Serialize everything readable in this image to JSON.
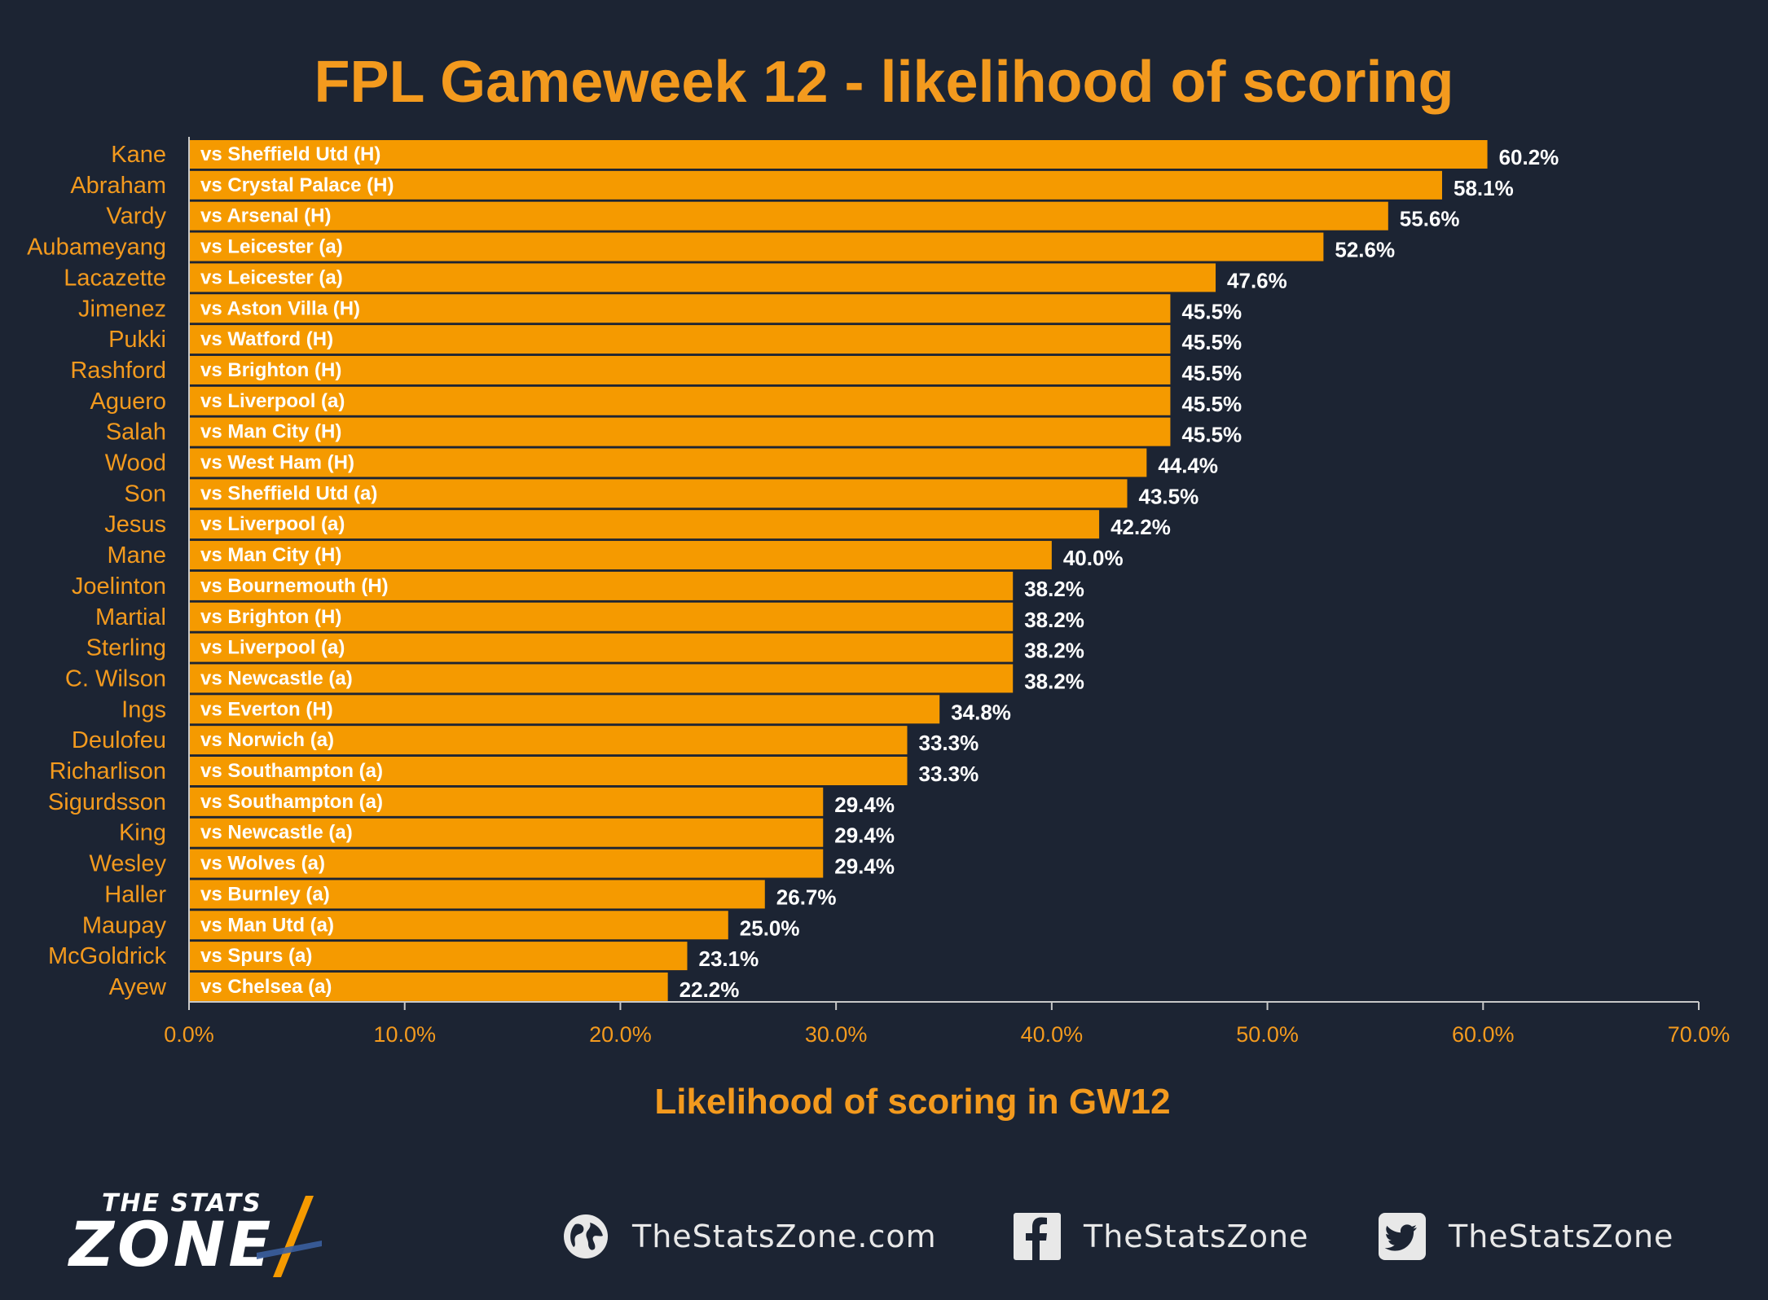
{
  "chart_data": {
    "type": "bar",
    "orientation": "horizontal",
    "title": "FPL Gameweek 12 - likelihood of scoring",
    "xlabel": "Likelihood of scoring in GW12",
    "xlim": [
      0,
      70
    ],
    "x_ticks": [
      "0.0%",
      "10.0%",
      "20.0%",
      "30.0%",
      "40.0%",
      "50.0%",
      "60.0%",
      "70.0%"
    ],
    "grid": false,
    "colors": {
      "bar": "#f59a00",
      "text": "#f39a1e",
      "background": "#1c2433",
      "axis": "#c8c8c8"
    },
    "categories": [
      "Kane",
      "Abraham",
      "Vardy",
      "Aubameyang",
      "Lacazette",
      "Jimenez",
      "Pukki",
      "Rashford",
      "Aguero",
      "Salah",
      "Wood",
      "Son",
      "Jesus",
      "Mane",
      "Joelinton",
      "Martial",
      "Sterling",
      "C. Wilson",
      "Ings",
      "Deulofeu",
      "Richarlison",
      "Sigurdsson",
      "King",
      "Wesley",
      "Haller",
      "Maupay",
      "McGoldrick",
      "Ayew"
    ],
    "fixtures": [
      "vs Sheffield Utd (H)",
      "vs Crystal Palace (H)",
      "vs Arsenal (H)",
      "vs Leicester (a)",
      "vs Leicester (a)",
      "vs Aston Villa (H)",
      "vs Watford (H)",
      "vs Brighton (H)",
      "vs Liverpool (a)",
      "vs Man City (H)",
      "vs West Ham (H)",
      "vs Sheffield Utd (a)",
      "vs Liverpool (a)",
      "vs Man City (H)",
      "vs Bournemouth (H)",
      "vs Brighton (H)",
      "vs Liverpool (a)",
      "vs Newcastle (a)",
      "vs Everton (H)",
      "vs Norwich (a)",
      "vs Southampton (a)",
      "vs Southampton (a)",
      "vs Newcastle (a)",
      "vs Wolves (a)",
      "vs Burnley (a)",
      "vs Man Utd (a)",
      "vs Spurs (a)",
      "vs Chelsea (a)"
    ],
    "values": [
      60.2,
      58.1,
      55.6,
      52.6,
      47.6,
      45.5,
      45.5,
      45.5,
      45.5,
      45.5,
      44.4,
      43.5,
      42.2,
      40.0,
      38.2,
      38.2,
      38.2,
      38.2,
      34.8,
      33.3,
      33.3,
      29.4,
      29.4,
      29.4,
      26.7,
      25.0,
      23.1,
      22.2
    ],
    "value_labels": [
      "60.2%",
      "58.1%",
      "55.6%",
      "52.6%",
      "47.6%",
      "45.5%",
      "45.5%",
      "45.5%",
      "45.5%",
      "45.5%",
      "44.4%",
      "43.5%",
      "42.2%",
      "40.0%",
      "38.2%",
      "38.2%",
      "38.2%",
      "38.2%",
      "34.8%",
      "33.3%",
      "33.3%",
      "29.4%",
      "29.4%",
      "29.4%",
      "26.7%",
      "25.0%",
      "23.1%",
      "22.2%"
    ]
  },
  "footer": {
    "logo_top": "THE STATS",
    "logo_main": "ZONE",
    "website": "TheStatsZone.com",
    "facebook": "TheStatsZone",
    "twitter": "TheStatsZone",
    "icons": [
      "globe-icon",
      "facebook-icon",
      "twitter-icon"
    ]
  }
}
